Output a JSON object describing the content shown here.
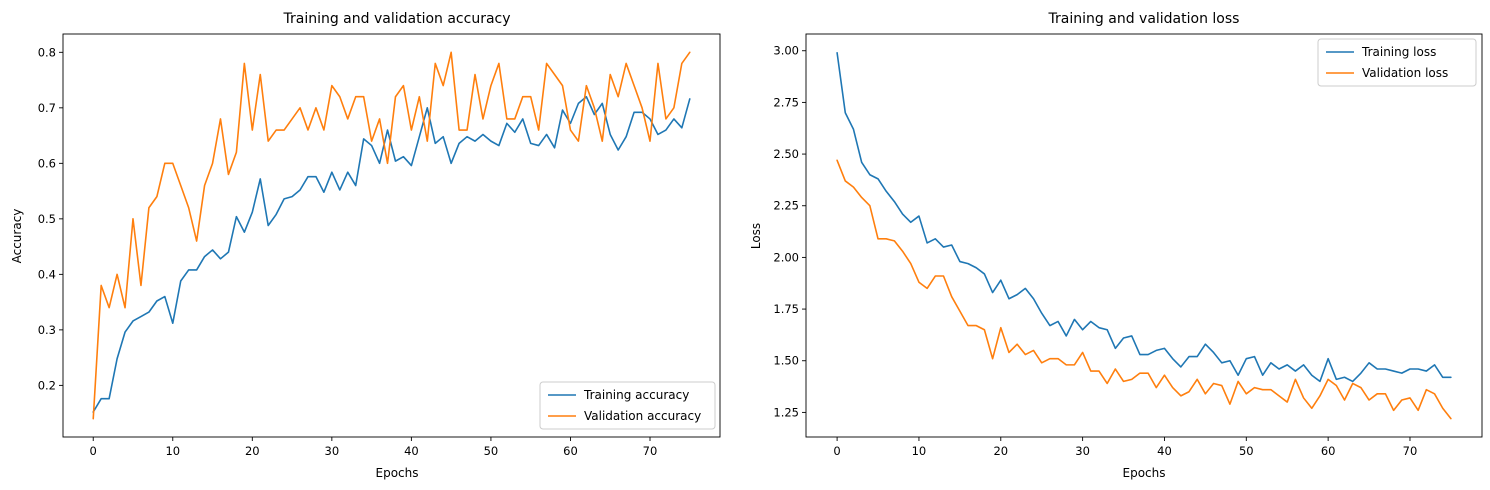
{
  "chart_data": [
    {
      "type": "line",
      "title": "Training and validation accuracy",
      "xlabel": "Epochs",
      "ylabel": "Accuracy",
      "xlim": [
        -3.8,
        78.8
      ],
      "ylim": [
        0.107,
        0.833
      ],
      "xticks": [
        0,
        10,
        20,
        30,
        40,
        50,
        60,
        70
      ],
      "xtick_labels": [
        "0",
        "10",
        "20",
        "30",
        "40",
        "50",
        "60",
        "70"
      ],
      "yticks": [
        0.2,
        0.3,
        0.4,
        0.5,
        0.6,
        0.7,
        0.8
      ],
      "ytick_labels": [
        "0.2",
        "0.3",
        "0.4",
        "0.5",
        "0.6",
        "0.7",
        "0.8"
      ],
      "grid": false,
      "legend_position": "lower-right",
      "series": [
        {
          "name": "Training accuracy",
          "color": "#1f77b4",
          "values": [
            0.152,
            0.176,
            0.176,
            0.248,
            0.296,
            0.316,
            0.324,
            0.332,
            0.352,
            0.36,
            0.312,
            0.388,
            0.408,
            0.408,
            0.432,
            0.444,
            0.428,
            0.44,
            0.504,
            0.476,
            0.512,
            0.572,
            0.488,
            0.508,
            0.536,
            0.54,
            0.552,
            0.576,
            0.576,
            0.548,
            0.584,
            0.552,
            0.584,
            0.56,
            0.644,
            0.632,
            0.6,
            0.66,
            0.604,
            0.612,
            0.596,
            0.648,
            0.7,
            0.636,
            0.648,
            0.6,
            0.636,
            0.648,
            0.64,
            0.652,
            0.64,
            0.632,
            0.672,
            0.656,
            0.68,
            0.636,
            0.632,
            0.652,
            0.628,
            0.696,
            0.672,
            0.708,
            0.72,
            0.688,
            0.708,
            0.652,
            0.624,
            0.648,
            0.692,
            0.692,
            0.68,
            0.652,
            0.66,
            0.68,
            0.664,
            0.716
          ]
        },
        {
          "name": "Validation accuracy",
          "color": "#ff7f0e",
          "values": [
            0.14,
            0.38,
            0.34,
            0.4,
            0.34,
            0.5,
            0.38,
            0.52,
            0.54,
            0.6,
            0.6,
            0.56,
            0.52,
            0.46,
            0.56,
            0.6,
            0.68,
            0.58,
            0.62,
            0.78,
            0.66,
            0.76,
            0.64,
            0.66,
            0.66,
            0.68,
            0.7,
            0.66,
            0.7,
            0.66,
            0.74,
            0.72,
            0.68,
            0.72,
            0.72,
            0.64,
            0.68,
            0.6,
            0.72,
            0.74,
            0.66,
            0.72,
            0.64,
            0.78,
            0.74,
            0.8,
            0.66,
            0.66,
            0.76,
            0.68,
            0.74,
            0.78,
            0.68,
            0.68,
            0.72,
            0.72,
            0.66,
            0.78,
            0.76,
            0.74,
            0.66,
            0.64,
            0.74,
            0.7,
            0.64,
            0.76,
            0.72,
            0.78,
            0.74,
            0.7,
            0.64,
            0.78,
            0.68,
            0.7,
            0.78,
            0.8
          ]
        }
      ]
    },
    {
      "type": "line",
      "title": "Training and validation loss",
      "xlabel": "Epochs",
      "ylabel": "Loss",
      "xlim": [
        -3.8,
        78.8
      ],
      "ylim": [
        1.131,
        3.081
      ],
      "xticks": [
        0,
        10,
        20,
        30,
        40,
        50,
        60,
        70
      ],
      "xtick_labels": [
        "0",
        "10",
        "20",
        "30",
        "40",
        "50",
        "60",
        "70"
      ],
      "yticks": [
        1.25,
        1.5,
        1.75,
        2.0,
        2.25,
        2.5,
        2.75,
        3.0
      ],
      "ytick_labels": [
        "1.25",
        "1.50",
        "1.75",
        "2.00",
        "2.25",
        "2.50",
        "2.75",
        "3.00"
      ],
      "grid": false,
      "legend_position": "upper-right",
      "series": [
        {
          "name": "Training loss",
          "color": "#1f77b4",
          "values": [
            2.99,
            2.7,
            2.62,
            2.46,
            2.4,
            2.38,
            2.32,
            2.27,
            2.21,
            2.17,
            2.2,
            2.07,
            2.09,
            2.05,
            2.06,
            1.98,
            1.97,
            1.95,
            1.92,
            1.83,
            1.89,
            1.8,
            1.82,
            1.85,
            1.8,
            1.73,
            1.67,
            1.69,
            1.62,
            1.7,
            1.65,
            1.69,
            1.66,
            1.65,
            1.56,
            1.61,
            1.62,
            1.53,
            1.53,
            1.55,
            1.56,
            1.51,
            1.47,
            1.52,
            1.52,
            1.58,
            1.54,
            1.49,
            1.5,
            1.43,
            1.51,
            1.52,
            1.43,
            1.49,
            1.46,
            1.48,
            1.45,
            1.48,
            1.43,
            1.4,
            1.51,
            1.41,
            1.42,
            1.4,
            1.44,
            1.49,
            1.46,
            1.46,
            1.45,
            1.44,
            1.46,
            1.46,
            1.45,
            1.48,
            1.42,
            1.42
          ]
        },
        {
          "name": "Validation loss",
          "color": "#ff7f0e",
          "values": [
            2.47,
            2.37,
            2.34,
            2.29,
            2.25,
            2.09,
            2.09,
            2.08,
            2.03,
            1.97,
            1.88,
            1.85,
            1.91,
            1.91,
            1.81,
            1.74,
            1.67,
            1.67,
            1.65,
            1.51,
            1.66,
            1.54,
            1.58,
            1.53,
            1.55,
            1.49,
            1.51,
            1.51,
            1.48,
            1.48,
            1.54,
            1.45,
            1.45,
            1.39,
            1.46,
            1.4,
            1.41,
            1.44,
            1.44,
            1.37,
            1.43,
            1.37,
            1.33,
            1.35,
            1.41,
            1.34,
            1.39,
            1.38,
            1.29,
            1.4,
            1.34,
            1.37,
            1.36,
            1.36,
            1.33,
            1.3,
            1.41,
            1.32,
            1.27,
            1.33,
            1.41,
            1.38,
            1.31,
            1.39,
            1.37,
            1.31,
            1.34,
            1.34,
            1.26,
            1.31,
            1.32,
            1.26,
            1.36,
            1.34,
            1.27,
            1.22
          ]
        }
      ]
    }
  ]
}
